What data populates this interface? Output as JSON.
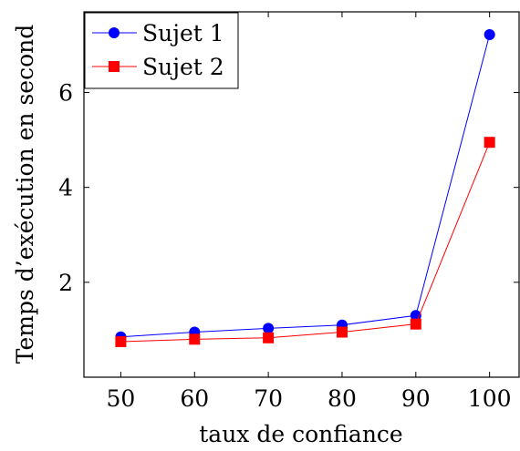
{
  "chart_data": {
    "type": "line",
    "title": "",
    "xlabel": "taux de confiance",
    "ylabel": "Temps d’exécution en second",
    "x": [
      50,
      60,
      70,
      80,
      90,
      100
    ],
    "xlim": [
      45,
      104
    ],
    "ylim": [
      0,
      7.7
    ],
    "xticks": [
      50,
      60,
      70,
      80,
      90,
      100
    ],
    "yticks": [
      2,
      4,
      6
    ],
    "grid": false,
    "legend_position": "top-left",
    "series": [
      {
        "name": "Sujet 1",
        "color": "#0000ff",
        "marker": "circle",
        "values": [
          0.85,
          0.95,
          1.03,
          1.1,
          1.3,
          7.22
        ]
      },
      {
        "name": "Sujet 2",
        "color": "#ff0000",
        "marker": "square",
        "values": [
          0.75,
          0.8,
          0.83,
          0.95,
          1.12,
          4.95
        ]
      }
    ]
  }
}
